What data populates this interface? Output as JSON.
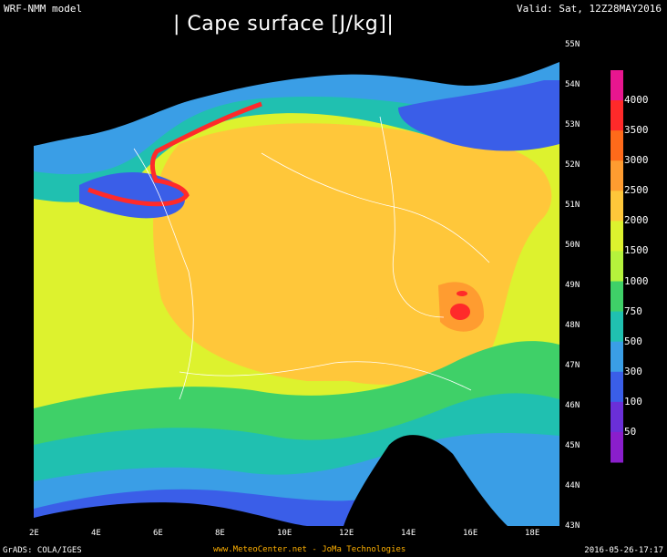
{
  "header": {
    "model": "WRF-NMM model",
    "title": "| Cape surface [J/kg]|",
    "valid": "Valid: Sat, 12Z28MAY2016"
  },
  "map": {
    "latitude_labels": [
      "55N",
      "54N",
      "53N",
      "52N",
      "51N",
      "50N",
      "49N",
      "48N",
      "47N",
      "46N",
      "45N",
      "44N",
      "43N"
    ],
    "longitude_labels": [
      "2E",
      "4E",
      "6E",
      "8E",
      "10E",
      "12E",
      "14E",
      "16E",
      "18E"
    ]
  },
  "legend": {
    "labels": [
      "4000",
      "3500",
      "3000",
      "2500",
      "2000",
      "1500",
      "1000",
      "750",
      "500",
      "300",
      "100",
      "50"
    ],
    "colors": [
      "#e8168f",
      "#ff2a2a",
      "#ff6a1a",
      "#ff9c30",
      "#ffc73a",
      "#ddf22e",
      "#b5f23c",
      "#3fd068",
      "#20c0b0",
      "#3a9ee6",
      "#3a5ee8",
      "#6a2fd8",
      "#8a1ecc"
    ]
  },
  "footer": {
    "software": "GrADS: COLA/IGES",
    "credit": "www.MeteoCenter.net  -  JoMa Technologies",
    "timestamp": "2016-05-26-17:17"
  }
}
